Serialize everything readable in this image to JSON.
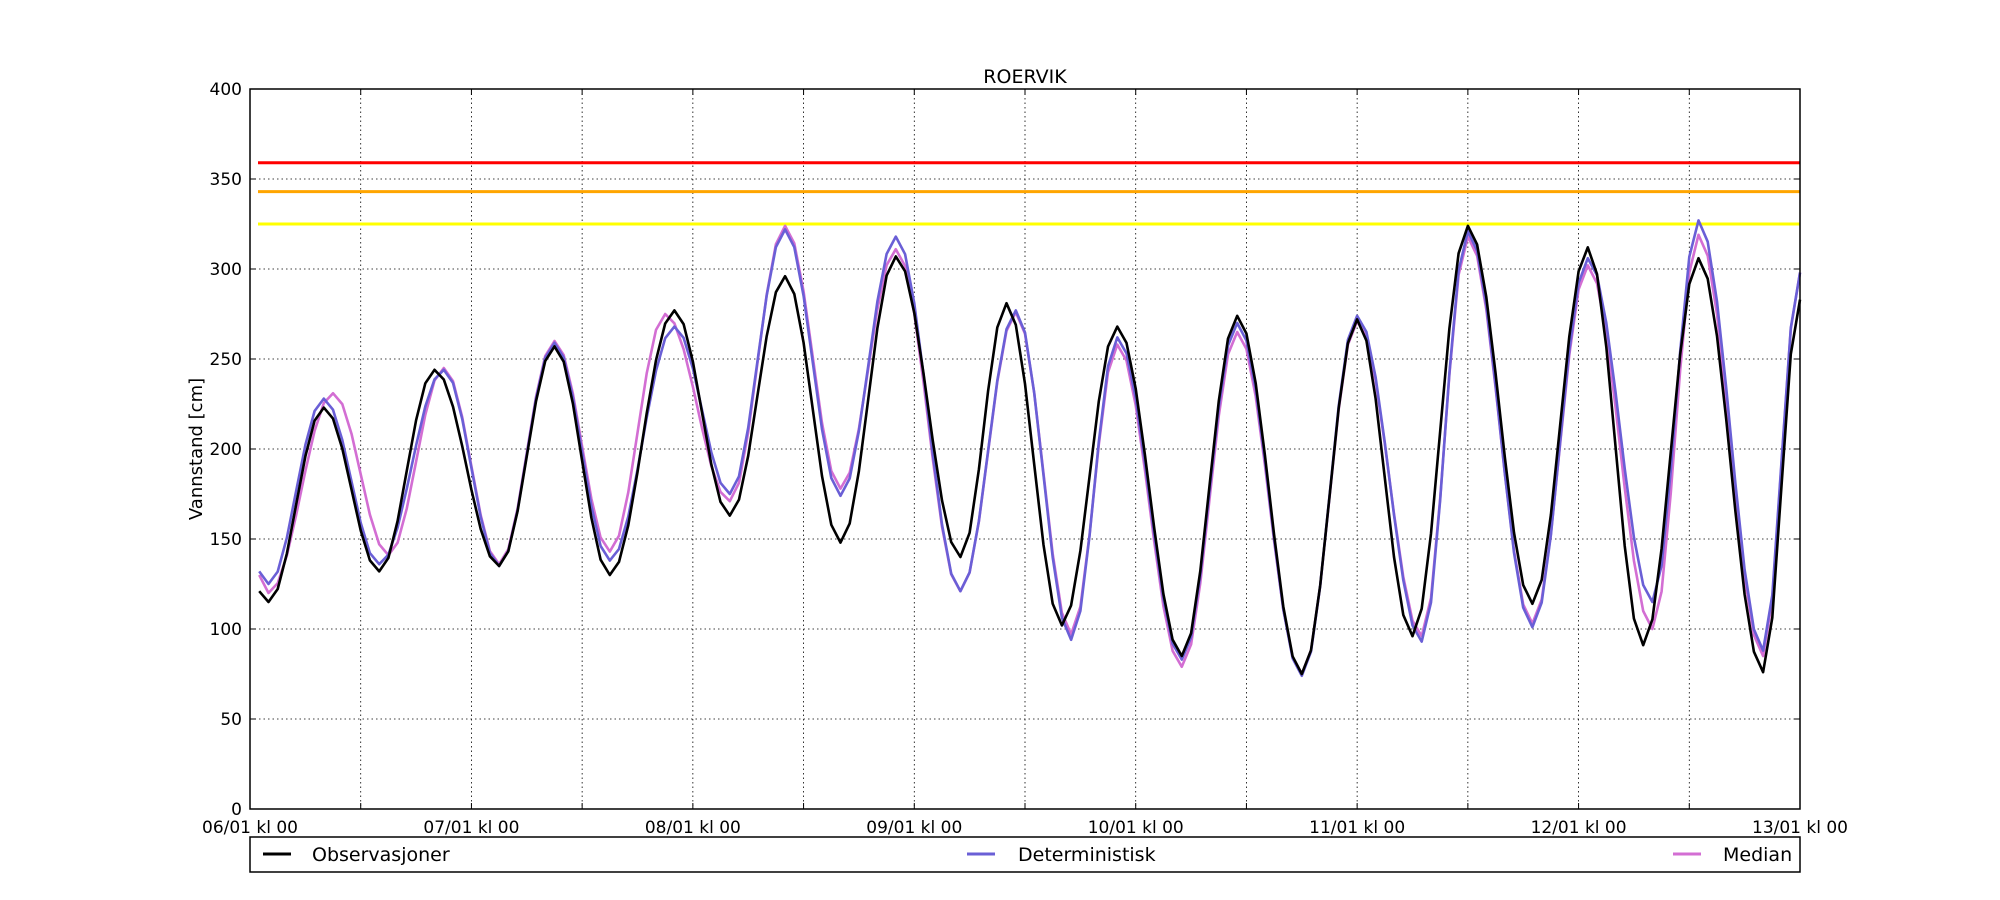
{
  "chart_data": {
    "type": "line",
    "title": "ROERVIK",
    "xlabel": "",
    "ylabel": "Vannstand [cm]",
    "ylim": [
      0,
      400
    ],
    "yticks": [
      0,
      50,
      100,
      150,
      200,
      250,
      300,
      350,
      400
    ],
    "xlim_hours": [
      0,
      168
    ],
    "xtick_labels": [
      "06/01 kl 00",
      "07/01 kl 00",
      "08/01 kl 00",
      "09/01 kl 00",
      "10/01 kl 00",
      "11/01 kl 00",
      "12/01 kl 00",
      "13/01 kl 00"
    ],
    "x_unit": "hours since 06/01 kl 00",
    "grid": true,
    "legend_placement": "below plot, full width",
    "thresholds": [
      {
        "value": 359,
        "color": "#ff0000"
      },
      {
        "value": 343,
        "color": "#ffa500"
      },
      {
        "value": 325,
        "color": "#ffff00"
      }
    ],
    "series": [
      {
        "name": "Observasjoner",
        "color": "#000000",
        "points": [
          [
            1,
            121
          ],
          [
            2,
            115
          ],
          [
            8,
            223
          ],
          [
            14,
            132
          ],
          [
            20,
            244
          ],
          [
            27,
            135
          ],
          [
            33,
            257
          ],
          [
            39,
            130
          ],
          [
            46,
            277
          ],
          [
            52,
            163
          ],
          [
            58,
            296
          ],
          [
            64,
            148
          ],
          [
            70,
            307
          ],
          [
            77,
            140
          ],
          [
            82,
            281
          ],
          [
            88,
            102
          ],
          [
            94,
            268
          ],
          [
            101,
            85
          ],
          [
            107,
            274
          ],
          [
            114,
            75
          ],
          [
            120,
            272
          ],
          [
            126,
            96
          ],
          [
            132,
            324
          ],
          [
            139,
            114
          ],
          [
            145,
            312
          ],
          [
            151,
            91
          ],
          [
            157,
            306
          ],
          [
            164,
            76
          ],
          [
            168,
            283
          ]
        ]
      },
      {
        "name": "Deterministisk",
        "color": "#6a5fd6",
        "points": [
          [
            1,
            132
          ],
          [
            2,
            125
          ],
          [
            8,
            228
          ],
          [
            14,
            136
          ],
          [
            21,
            244
          ],
          [
            27,
            135
          ],
          [
            33,
            259
          ],
          [
            39,
            138
          ],
          [
            46,
            268
          ],
          [
            52,
            175
          ],
          [
            58,
            322
          ],
          [
            64,
            174
          ],
          [
            70,
            318
          ],
          [
            77,
            121
          ],
          [
            83,
            277
          ],
          [
            89,
            94
          ],
          [
            94,
            262
          ],
          [
            101,
            83
          ],
          [
            107,
            270
          ],
          [
            114,
            74
          ],
          [
            120,
            274
          ],
          [
            127,
            93
          ],
          [
            132,
            321
          ],
          [
            139,
            101
          ],
          [
            145,
            306
          ],
          [
            152,
            115
          ],
          [
            157,
            327
          ],
          [
            164,
            88
          ],
          [
            168,
            298
          ]
        ]
      },
      {
        "name": "Median",
        "color": "#d36ed3",
        "points": [
          [
            1,
            130
          ],
          [
            2,
            120
          ],
          [
            9,
            231
          ],
          [
            15,
            141
          ],
          [
            21,
            245
          ],
          [
            27,
            136
          ],
          [
            33,
            260
          ],
          [
            39,
            143
          ],
          [
            45,
            275
          ],
          [
            52,
            171
          ],
          [
            58,
            324
          ],
          [
            64,
            178
          ],
          [
            70,
            311
          ],
          [
            77,
            121
          ],
          [
            83,
            276
          ],
          [
            89,
            97
          ],
          [
            94,
            258
          ],
          [
            101,
            79
          ],
          [
            107,
            265
          ],
          [
            114,
            75
          ],
          [
            120,
            271
          ],
          [
            127,
            96
          ],
          [
            132,
            318
          ],
          [
            139,
            103
          ],
          [
            145,
            302
          ],
          [
            152,
            100
          ],
          [
            157,
            319
          ],
          [
            164,
            85
          ],
          [
            168,
            298
          ]
        ]
      }
    ]
  }
}
